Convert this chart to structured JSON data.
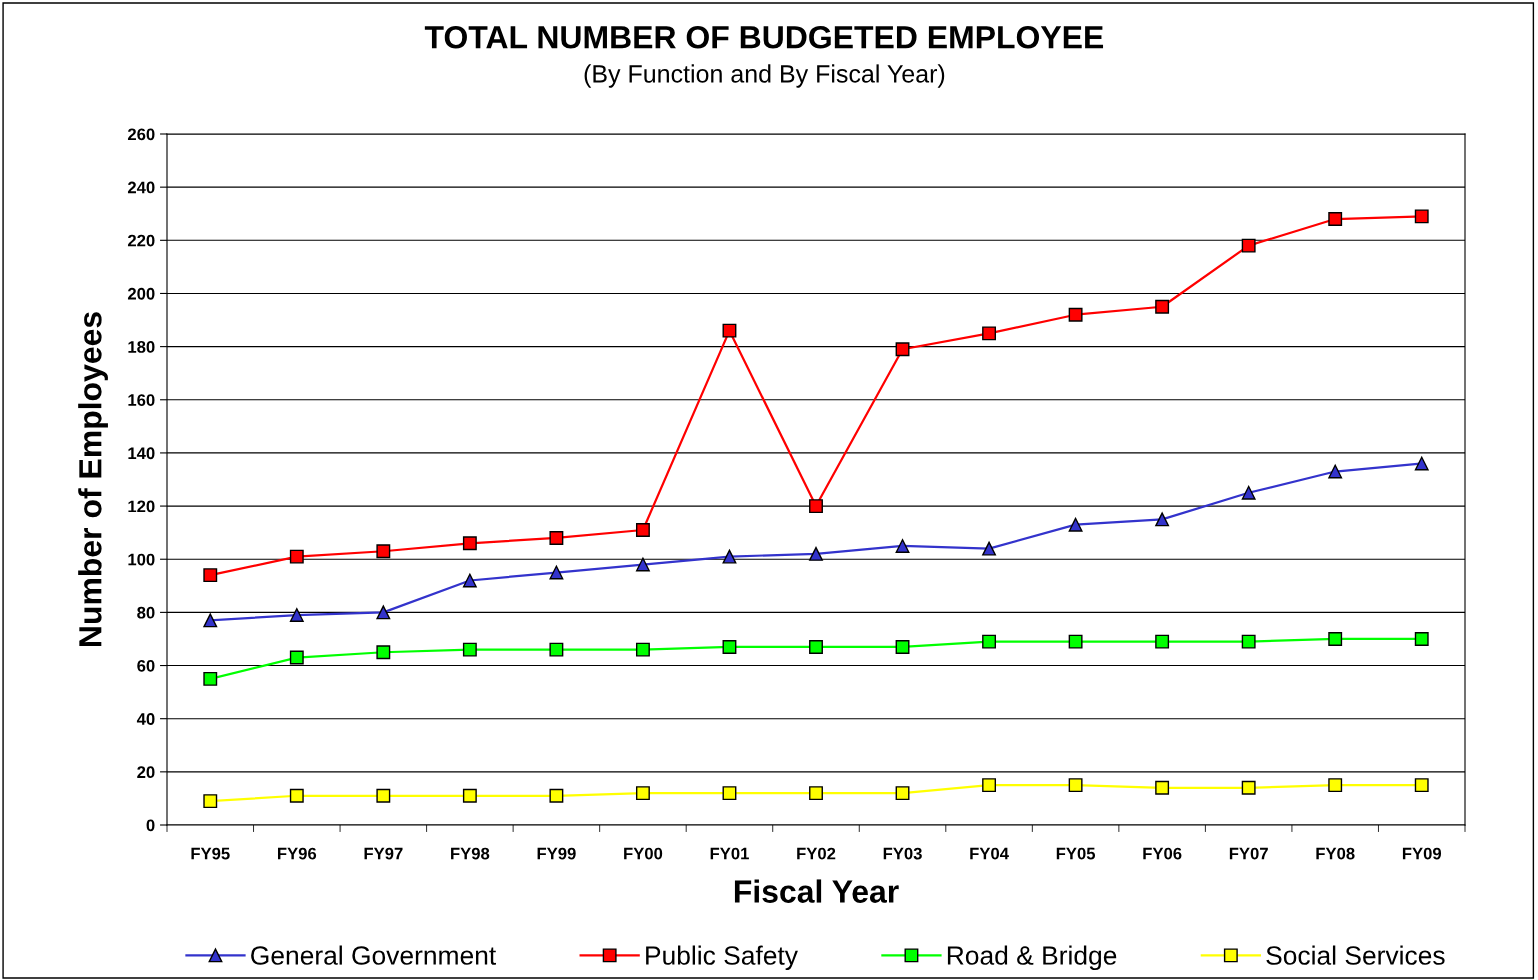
{
  "chart_data": {
    "type": "line",
    "title": "TOTAL NUMBER OF BUDGETED EMPLOYEE",
    "subtitle": "(By Function and By Fiscal Year)",
    "xlabel": "Fiscal Year",
    "ylabel": "Number of Employees",
    "categories": [
      "FY95",
      "FY96",
      "FY97",
      "FY98",
      "FY99",
      "FY00",
      "FY01",
      "FY02",
      "FY03",
      "FY04",
      "FY05",
      "FY06",
      "FY07",
      "FY08",
      "FY09"
    ],
    "series": [
      {
        "name": "General Government",
        "color": "#3333cc",
        "marker": "triangle",
        "values": [
          77,
          79,
          80,
          92,
          95,
          98,
          101,
          102,
          105,
          104,
          113,
          115,
          125,
          133,
          136
        ]
      },
      {
        "name": "Public Safety",
        "color": "#ff0000",
        "marker": "square",
        "values": [
          94,
          101,
          103,
          106,
          108,
          111,
          186,
          120,
          179,
          185,
          192,
          195,
          218,
          228,
          229
        ]
      },
      {
        "name": "Road & Bridge",
        "color": "#00ff00",
        "marker": "square",
        "values": [
          55,
          63,
          65,
          66,
          66,
          66,
          67,
          67,
          67,
          69,
          69,
          69,
          69,
          70,
          70
        ]
      },
      {
        "name": "Social Services",
        "color": "#ffff00",
        "marker": "square",
        "values": [
          9,
          11,
          11,
          11,
          11,
          12,
          12,
          12,
          12,
          15,
          15,
          14,
          14,
          15,
          15
        ]
      }
    ],
    "ylim": [
      0,
      260
    ],
    "yticks": [
      0,
      20,
      40,
      60,
      80,
      100,
      120,
      140,
      160,
      180,
      200,
      220,
      240,
      260
    ],
    "grid": "y",
    "legend": "bottom",
    "line_style": "solid"
  }
}
